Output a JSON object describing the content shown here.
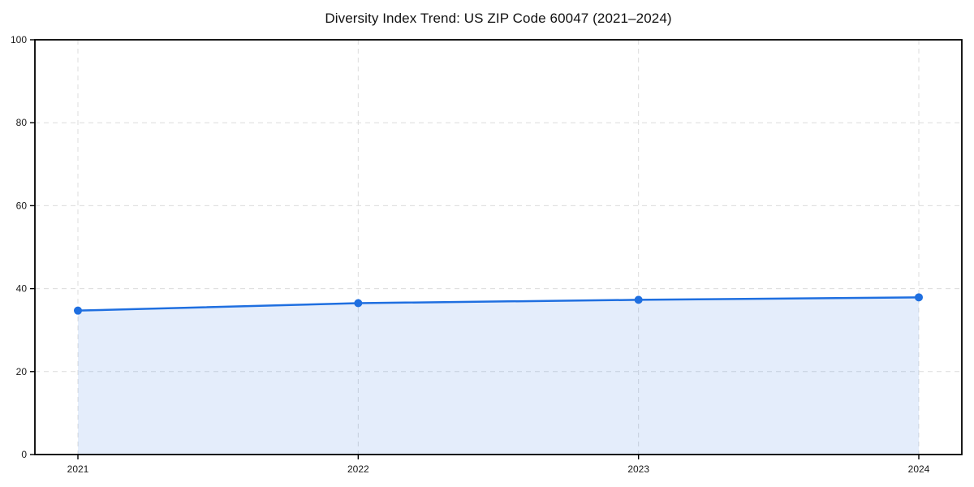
{
  "chart_data": {
    "type": "area",
    "title": "Diversity Index Trend: US ZIP Code 60047 (2021–2024)",
    "x": [
      "2021",
      "2022",
      "2023",
      "2024"
    ],
    "series": [
      {
        "name": "Diversity Index",
        "values": [
          34.7,
          36.5,
          37.3,
          37.9
        ]
      }
    ],
    "xlabel": "",
    "ylabel": "",
    "ylim": [
      0,
      100
    ],
    "yticks": [
      0,
      20,
      40,
      60,
      80,
      100
    ],
    "grid": true,
    "grid_style": "dashed",
    "legend": false,
    "marker": "circle",
    "colors": {
      "line": "#1f6fe0",
      "fill": "rgba(31, 111, 224, 0.12)",
      "grid": "#dcdcdc",
      "axis": "#000000",
      "tick_text": "#1a1a1a"
    }
  }
}
